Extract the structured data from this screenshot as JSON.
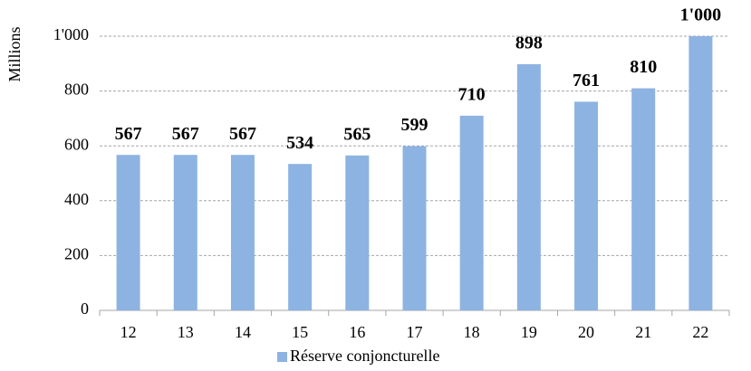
{
  "chart_data": {
    "type": "bar",
    "ylabel": "Millions",
    "categories": [
      "12",
      "13",
      "14",
      "15",
      "16",
      "17",
      "18",
      "19",
      "20",
      "21",
      "22"
    ],
    "series": [
      {
        "name": "Réserve conjoncturelle",
        "color": "#8db3e2",
        "values": [
          567,
          567,
          567,
          534,
          565,
          599,
          710,
          898,
          761,
          810,
          1000
        ],
        "value_labels": [
          "567",
          "567",
          "567",
          "534",
          "565",
          "599",
          "710",
          "898",
          "761",
          "810",
          "1'000"
        ]
      }
    ],
    "ylim": [
      0,
      1000
    ],
    "yticks": [
      0,
      200,
      400,
      600,
      800,
      {
        "value": 1000,
        "label": "1'000"
      }
    ],
    "grid": true,
    "legend": "bottom"
  }
}
